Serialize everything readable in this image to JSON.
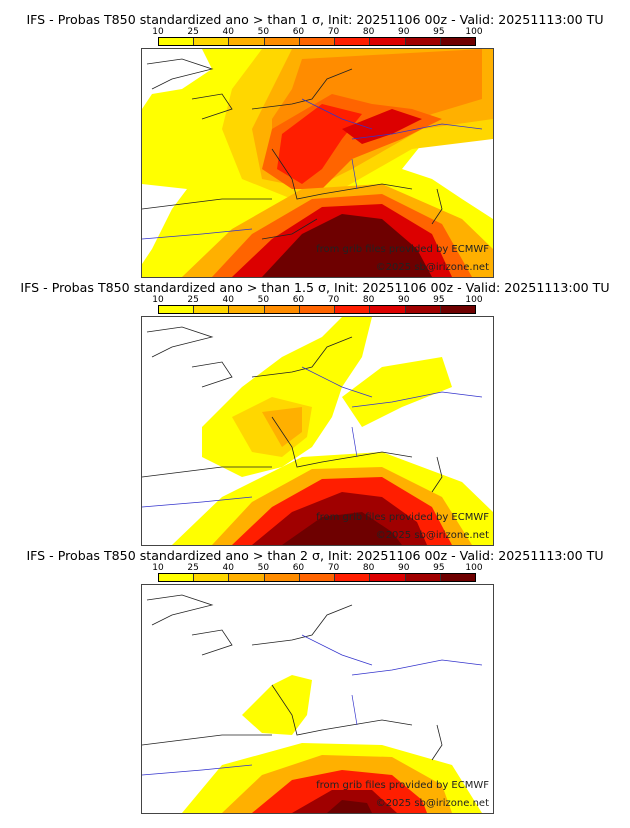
{
  "colorbar": {
    "ticks": [
      "10",
      "25",
      "40",
      "50",
      "60",
      "70",
      "80",
      "90",
      "95",
      "100"
    ],
    "colors": [
      "#ffff00",
      "#ffd700",
      "#ffb000",
      "#ff8c00",
      "#ff6400",
      "#ff1e00",
      "#dc0000",
      "#a00000",
      "#6e0000"
    ]
  },
  "panels": [
    {
      "title": "IFS - Probas T850  standardized ano > than 1 σ, Init: 20251106 00z - Valid: 20251113:00 TU",
      "credit_source": "from grib files provided by ECMWF",
      "credit_copyright": "©2025 sb@irizone.net"
    },
    {
      "title": "IFS - Probas T850  standardized ano > than 1.5 σ, Init: 20251106 00z - Valid: 20251113:00 TU",
      "credit_source": "from grib files provided by ECMWF",
      "credit_copyright": "©2025 sb@irizone.net"
    },
    {
      "title": "IFS - Probas T850  standardized ano > than 2 σ, Init: 20251106 00z - Valid: 20251113:00 TU",
      "credit_source": "from grib files provided by ECMWF",
      "credit_copyright": "©2025 sb@irizone.net"
    }
  ]
}
